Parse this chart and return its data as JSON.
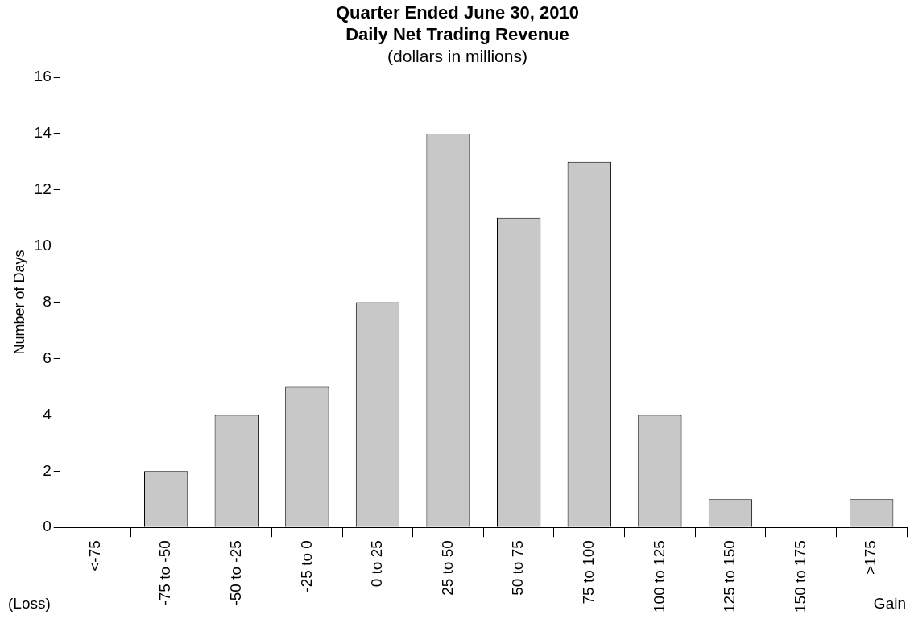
{
  "chart_data": {
    "type": "bar",
    "title": "Quarter Ended June 30, 2010\nDaily Net Trading Revenue",
    "subtitle": "(dollars in millions)",
    "ylabel": "Number of Days",
    "categories": [
      "<-75",
      "-75 to -50",
      "-50 to -25",
      "-25 to 0",
      "0 to 25",
      "25 to 50",
      "50 to 75",
      "75 to 100",
      "100 to 125",
      "125 to 150",
      "150 to 175",
      ">175"
    ],
    "values": [
      0,
      2,
      4,
      5,
      8,
      14,
      11,
      13,
      4,
      1,
      0,
      1
    ],
    "color": "#c8c8c8",
    "ylim": [
      0,
      16
    ],
    "yticks": [
      0,
      2,
      4,
      6,
      8,
      10,
      12,
      14,
      16
    ],
    "grid": false,
    "legend": false,
    "annotations": [
      "(Loss)",
      "Gain"
    ]
  }
}
